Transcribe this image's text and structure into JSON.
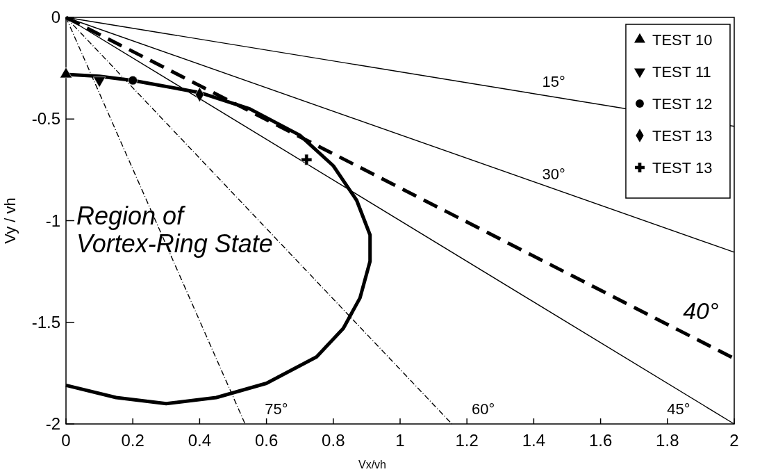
{
  "chart_data": {
    "type": "line",
    "xlabel": "Vx/vh",
    "ylabel": "Vy / vh",
    "xlim": [
      0,
      2
    ],
    "ylim": [
      -2,
      0
    ],
    "xticks": [
      0,
      0.2,
      0.4,
      0.6,
      0.8,
      1,
      1.2,
      1.4,
      1.6,
      1.8,
      2
    ],
    "yticks": [
      0,
      -0.5,
      -1,
      -1.5,
      -2
    ],
    "grid": false,
    "legend": "top right",
    "series": [
      {
        "name": "15°",
        "color": "#000000",
        "line_style": "solid",
        "x": [
          0,
          2
        ],
        "values": [
          0,
          -0.536
        ]
      },
      {
        "name": "30°",
        "color": "#000000",
        "line_style": "solid",
        "x": [
          0,
          2
        ],
        "values": [
          0,
          -1.155
        ]
      },
      {
        "name": "40°",
        "color": "#000000",
        "line_style": "dashed",
        "x": [
          0,
          2
        ],
        "values": [
          0,
          -1.678
        ]
      },
      {
        "name": "45°",
        "color": "#000000",
        "line_style": "solid",
        "x": [
          0,
          2
        ],
        "values": [
          0,
          -2
        ]
      },
      {
        "name": "60°",
        "color": "#000000",
        "line_style": "dotted",
        "x": [
          0,
          1.155
        ],
        "values": [
          0,
          -2
        ]
      },
      {
        "name": "75°",
        "color": "#000000",
        "line_style": "dotted",
        "x": [
          0,
          0.536
        ],
        "values": [
          0,
          -2
        ]
      },
      {
        "color": "#000000",
        "line_style": "solid",
        "x": [
          0,
          0.1,
          0.2,
          0.4,
          0.55,
          0.7,
          0.8,
          0.87,
          0.91,
          0.91,
          0.88,
          0.83,
          0.75,
          0.6,
          0.45,
          0.3,
          0.15,
          0
        ],
        "values": [
          -0.28,
          -0.29,
          -0.31,
          -0.37,
          -0.45,
          -0.58,
          -0.73,
          -0.9,
          -1.07,
          -1.2,
          -1.38,
          -1.53,
          -1.67,
          -1.8,
          -1.87,
          -1.9,
          -1.87,
          -1.81
        ]
      },
      {
        "type": "scatter",
        "name": "TEST 10",
        "color": "#000000",
        "marker": "triangle",
        "x": [
          0
        ],
        "values": [
          -0.28
        ]
      },
      {
        "type": "scatter",
        "name": "TEST 11",
        "color": "#000000",
        "marker": "triangle-down",
        "x": [
          0.1
        ],
        "values": [
          -0.31
        ]
      },
      {
        "type": "scatter",
        "name": "TEST 12",
        "color": "#000000",
        "marker": "circle",
        "x": [
          0.2
        ],
        "values": [
          -0.31
        ]
      },
      {
        "type": "scatter",
        "name": "TEST 13",
        "color": "#000000",
        "marker": "diamond",
        "x": [
          0.4
        ],
        "values": [
          -0.38
        ]
      },
      {
        "type": "scatter",
        "name": "TEST 13",
        "color": "#000000",
        "marker": "cross",
        "x": [
          0.72
        ],
        "values": [
          -0.7
        ]
      }
    ],
    "annotations": [
      "Region of\nVortex-Ring State"
    ]
  }
}
